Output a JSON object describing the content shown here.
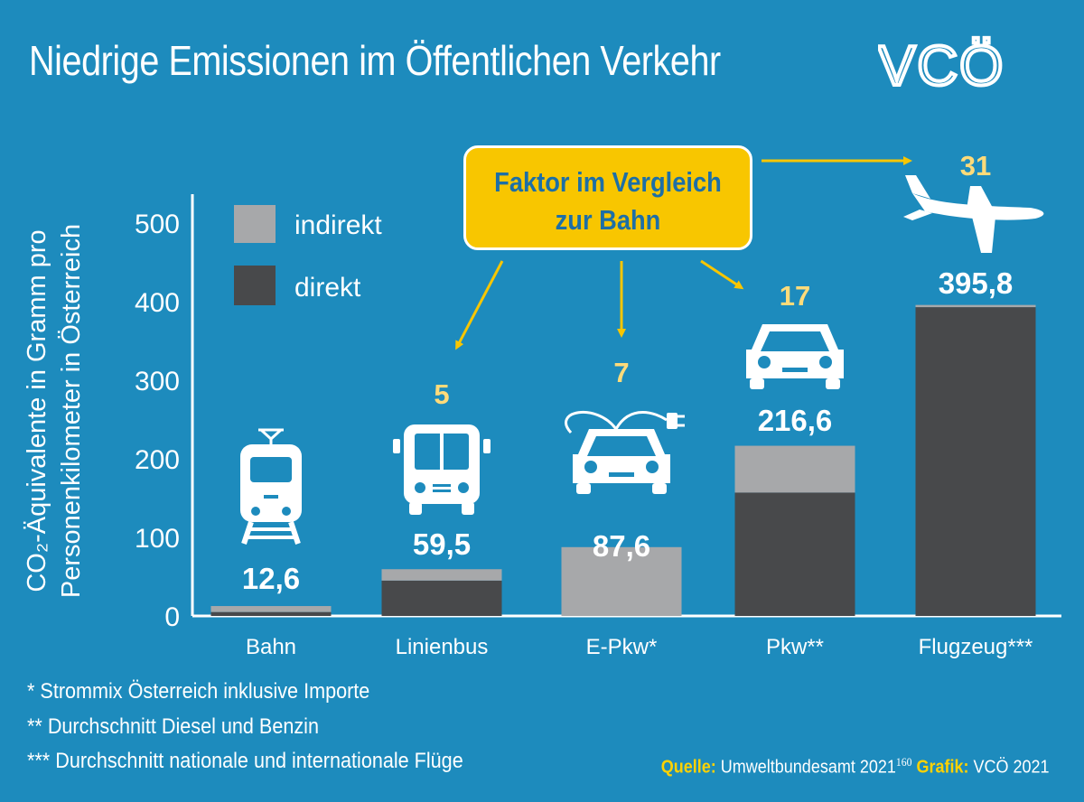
{
  "title": "Niedrige Emissionen im Öffentlichen Verkehr",
  "logo_text": "VCÖ",
  "ylabel_line1": "CO₂-Äquivalente in Gramm pro",
  "ylabel_line2": "Personenkilometer in Österreich",
  "callout": {
    "line1": "Faktor im Vergleich",
    "line2": "zur Bahn"
  },
  "footnotes": [
    "* Strommix Österreich inklusive Importe",
    "** Durchschnitt Diesel und Benzin",
    "*** Durchschnitt nationale und internationale Flüge"
  ],
  "source": {
    "label": "Quelle:",
    "text": "Umweltbundesamt 2021",
    "ref": "160",
    "grafik_label": "Grafik:",
    "grafik_text": "VCÖ 2021"
  },
  "icons": [
    "tram-icon",
    "bus-icon",
    "electric-car-icon",
    "car-icon",
    "airplane-icon"
  ],
  "colors": {
    "background": "#1d8bbd",
    "direkt": "#48494b",
    "indirekt": "#a7a8aa",
    "accent": "#f8c600",
    "factor_text": "#ffdb7a"
  },
  "chart_data": {
    "type": "bar",
    "stacked": true,
    "categories": [
      "Bahn",
      "Linienbus",
      "E-Pkw*",
      "Pkw**",
      "Flugzeug***"
    ],
    "series": [
      {
        "name": "direkt",
        "values": [
          5,
          45,
          0,
          157,
          393
        ]
      },
      {
        "name": "indirekt",
        "values": [
          7.6,
          14.5,
          87.6,
          59.6,
          2.8
        ]
      }
    ],
    "totals": [
      12.6,
      59.5,
      87.6,
      216.6,
      395.8
    ],
    "total_labels": [
      "12,6",
      "59,5",
      "87,6",
      "216,6",
      "395,8"
    ],
    "factor_labels": [
      "",
      "5",
      "7",
      "17",
      "31"
    ],
    "yticks": [
      0,
      100,
      200,
      300,
      400,
      500
    ],
    "ylim": [
      0,
      500
    ],
    "legend": [
      "indirekt",
      "direkt"
    ],
    "legend_position": "top-left"
  }
}
